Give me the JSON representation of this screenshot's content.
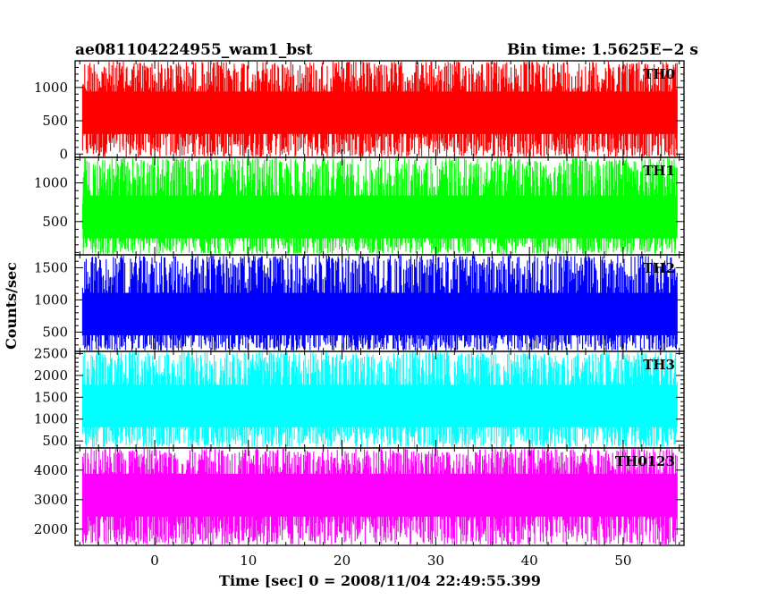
{
  "header": {
    "title": "ae081104224955_wam1_bst",
    "bin_time": "Bin time: 1.5625E−2 s"
  },
  "axes": {
    "ylabel": "Counts/sec",
    "xlabel": "Time [sec] 0 = 2008/11/04 22:49:55.399"
  },
  "chart_data": {
    "type": "line",
    "xlim": [
      -8.5,
      56.5
    ],
    "data_x_range": [
      -7.7,
      55.8
    ],
    "x_ticks": [
      0,
      10,
      20,
      30,
      40,
      50
    ],
    "x_tick_labels": [
      "0",
      "10",
      "20",
      "30",
      "40",
      "50"
    ],
    "grid": false,
    "panels": [
      {
        "name": "TH0",
        "color": "#ff0000",
        "ylim": [
          -50,
          1400
        ],
        "y_ticks": [
          0,
          500,
          1000
        ],
        "y_tick_labels": [
          "0",
          "500",
          "1000"
        ],
        "mean": 620,
        "typical_range": [
          60,
          1400
        ]
      },
      {
        "name": "TH1",
        "color": "#00ff00",
        "ylim": [
          70,
          1330
        ],
        "y_ticks": [
          500,
          1000
        ],
        "y_tick_labels": [
          "500",
          "1000"
        ],
        "mean": 560,
        "typical_range": [
          80,
          1330
        ]
      },
      {
        "name": "TH2",
        "color": "#0000ff",
        "ylim": [
          200,
          1700
        ],
        "y_ticks": [
          500,
          1000,
          1500
        ],
        "y_tick_labels": [
          "500",
          "1000",
          "1500"
        ],
        "mean": 780,
        "typical_range": [
          210,
          1700
        ]
      },
      {
        "name": "TH3",
        "color": "#00ffff",
        "ylim": [
          340,
          2550
        ],
        "y_ticks": [
          500,
          1000,
          1500,
          2000,
          2500
        ],
        "y_tick_labels": [
          "500",
          "1000",
          "1500",
          "2000",
          "2500"
        ],
        "mean": 1300,
        "typical_range": [
          360,
          2550
        ]
      },
      {
        "name": "TH0123",
        "color": "#ff00ff",
        "ylim": [
          1450,
          4750
        ],
        "y_ticks": [
          2000,
          3000,
          4000
        ],
        "y_tick_labels": [
          "2000",
          "3000",
          "4000"
        ],
        "mean": 3150,
        "typical_range": [
          1450,
          4750
        ]
      }
    ]
  }
}
